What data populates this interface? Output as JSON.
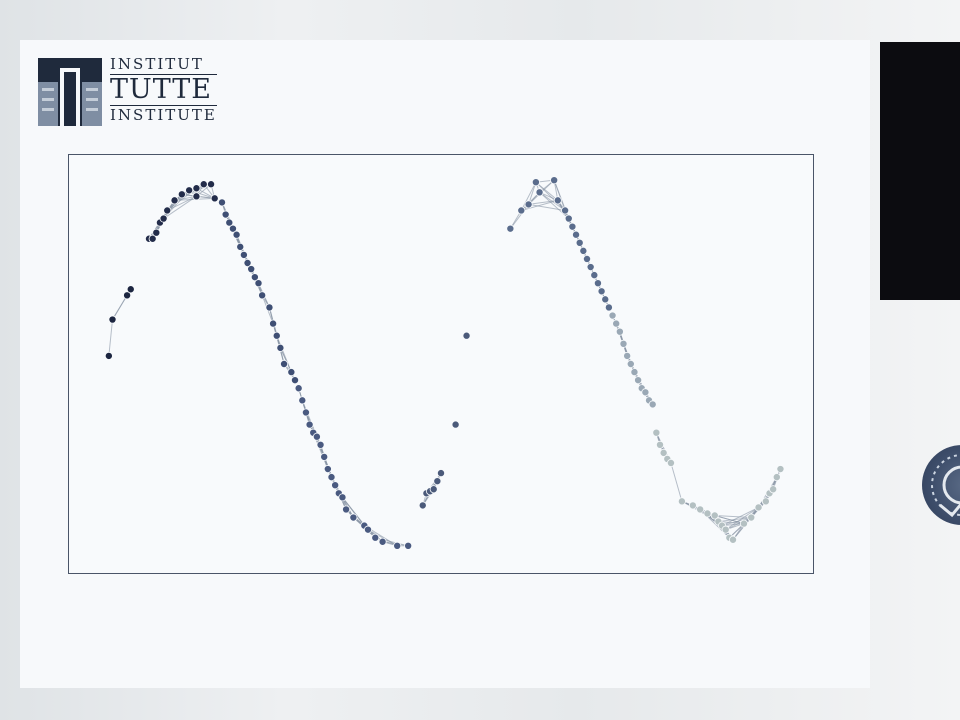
{
  "logo": {
    "line1": "INSTITUT",
    "line2": "TUTTE",
    "line3": "INSTITUTE"
  },
  "colors": {
    "frame": "#4a5568",
    "cluster_dark": "#1c2540",
    "cluster_mid": "#3f4f74",
    "cluster_blue": "#5a6c8c",
    "cluster_grey": "#9aa8b5",
    "cluster_light": "#b9c4c6",
    "edge": "#8a96a6"
  },
  "chart_data": {
    "type": "scatter",
    "title": "",
    "xlabel": "",
    "ylabel": "",
    "xlim": [
      0,
      100
    ],
    "ylim": [
      0,
      100
    ],
    "grid": false,
    "series": [
      {
        "color": "#1c2540",
        "points": [
          [
            4.5,
            52
          ],
          [
            5,
            61
          ],
          [
            7,
            67
          ],
          [
            7.5,
            68.5
          ]
        ]
      },
      {
        "color": "#232c4a",
        "points": [
          [
            10,
            81
          ],
          [
            10.5,
            81
          ],
          [
            11,
            82.5
          ],
          [
            11.5,
            85
          ],
          [
            12,
            86
          ],
          [
            12.5,
            88
          ],
          [
            13.5,
            90.5
          ],
          [
            14.5,
            92
          ],
          [
            15.5,
            93
          ],
          [
            16.5,
            93.5
          ],
          [
            17.5,
            94.5
          ],
          [
            18.5,
            94.5
          ],
          [
            16.5,
            91.5
          ],
          [
            19,
            91
          ]
        ]
      },
      {
        "color": "#3f4f74",
        "points": [
          [
            20,
            90
          ],
          [
            20.5,
            87
          ],
          [
            21,
            85
          ],
          [
            21.5,
            83.5
          ],
          [
            22,
            82
          ],
          [
            22.5,
            79
          ],
          [
            23,
            77
          ],
          [
            23.5,
            75
          ],
          [
            24,
            73.5
          ],
          [
            24.5,
            71.5
          ],
          [
            25,
            70
          ],
          [
            25.5,
            67
          ],
          [
            26.5,
            64
          ],
          [
            27,
            60
          ],
          [
            27.5,
            57
          ],
          [
            28,
            54
          ],
          [
            28.5,
            50
          ],
          [
            29.5,
            48
          ],
          [
            30,
            46
          ]
        ]
      },
      {
        "color": "#4a5a80",
        "points": [
          [
            30.5,
            44
          ],
          [
            31,
            41
          ],
          [
            31.5,
            38
          ],
          [
            32,
            35
          ],
          [
            32.5,
            33
          ],
          [
            33,
            32
          ],
          [
            33.5,
            30
          ],
          [
            34,
            27
          ],
          [
            34.5,
            24
          ],
          [
            35,
            22
          ],
          [
            35.5,
            20
          ],
          [
            36,
            18
          ],
          [
            36.5,
            17
          ],
          [
            37,
            14
          ],
          [
            38,
            12
          ],
          [
            39.5,
            10
          ],
          [
            40,
            9
          ],
          [
            41,
            7
          ],
          [
            42,
            6
          ],
          [
            44,
            5
          ],
          [
            45.5,
            5
          ]
        ]
      },
      {
        "color": "#4b5a7a",
        "points": [
          [
            47.5,
            15
          ],
          [
            48,
            18
          ],
          [
            48.5,
            18.5
          ],
          [
            49,
            19
          ],
          [
            49.5,
            21
          ],
          [
            50,
            23
          ],
          [
            52,
            35
          ],
          [
            53.5,
            57
          ]
        ]
      },
      {
        "color": "#5a6c8c",
        "points": [
          [
            59.5,
            83.5
          ],
          [
            61,
            88
          ],
          [
            62,
            89.5
          ],
          [
            63,
            95
          ],
          [
            65.5,
            95.5
          ],
          [
            63.5,
            92.5
          ],
          [
            66,
            90.5
          ],
          [
            67,
            88
          ],
          [
            67.5,
            86
          ],
          [
            68,
            84
          ],
          [
            68.5,
            82
          ],
          [
            69,
            80
          ],
          [
            69.5,
            78
          ],
          [
            70,
            76
          ],
          [
            70.5,
            74
          ],
          [
            71,
            72
          ],
          [
            71.5,
            70
          ],
          [
            72,
            68
          ],
          [
            72.5,
            66
          ],
          [
            73,
            64
          ]
        ]
      },
      {
        "color": "#9aa8b5",
        "points": [
          [
            73.5,
            62
          ],
          [
            74,
            60
          ],
          [
            74.5,
            58
          ],
          [
            75,
            55
          ],
          [
            75.5,
            52
          ],
          [
            76,
            50
          ],
          [
            76.5,
            48
          ],
          [
            77,
            46
          ],
          [
            77.5,
            44
          ],
          [
            78,
            43
          ],
          [
            78.5,
            41
          ],
          [
            79,
            40
          ]
        ]
      },
      {
        "color": "#b4c0c2",
        "points": [
          [
            79.5,
            33
          ],
          [
            80,
            30
          ],
          [
            80.5,
            28
          ],
          [
            81,
            26.5
          ],
          [
            81.5,
            25.5
          ],
          [
            83,
            16
          ],
          [
            84.5,
            15
          ],
          [
            85.5,
            14
          ],
          [
            86.5,
            13
          ],
          [
            87.5,
            12.5
          ],
          [
            88,
            11
          ],
          [
            88.5,
            10
          ],
          [
            89,
            9
          ],
          [
            89.5,
            7
          ],
          [
            90,
            6.5
          ],
          [
            91.5,
            10.5
          ],
          [
            92.5,
            12
          ],
          [
            93.5,
            14.5
          ],
          [
            94.5,
            16
          ],
          [
            95,
            18
          ],
          [
            95.5,
            19
          ],
          [
            96,
            22
          ],
          [
            96.5,
            24
          ]
        ]
      }
    ]
  }
}
